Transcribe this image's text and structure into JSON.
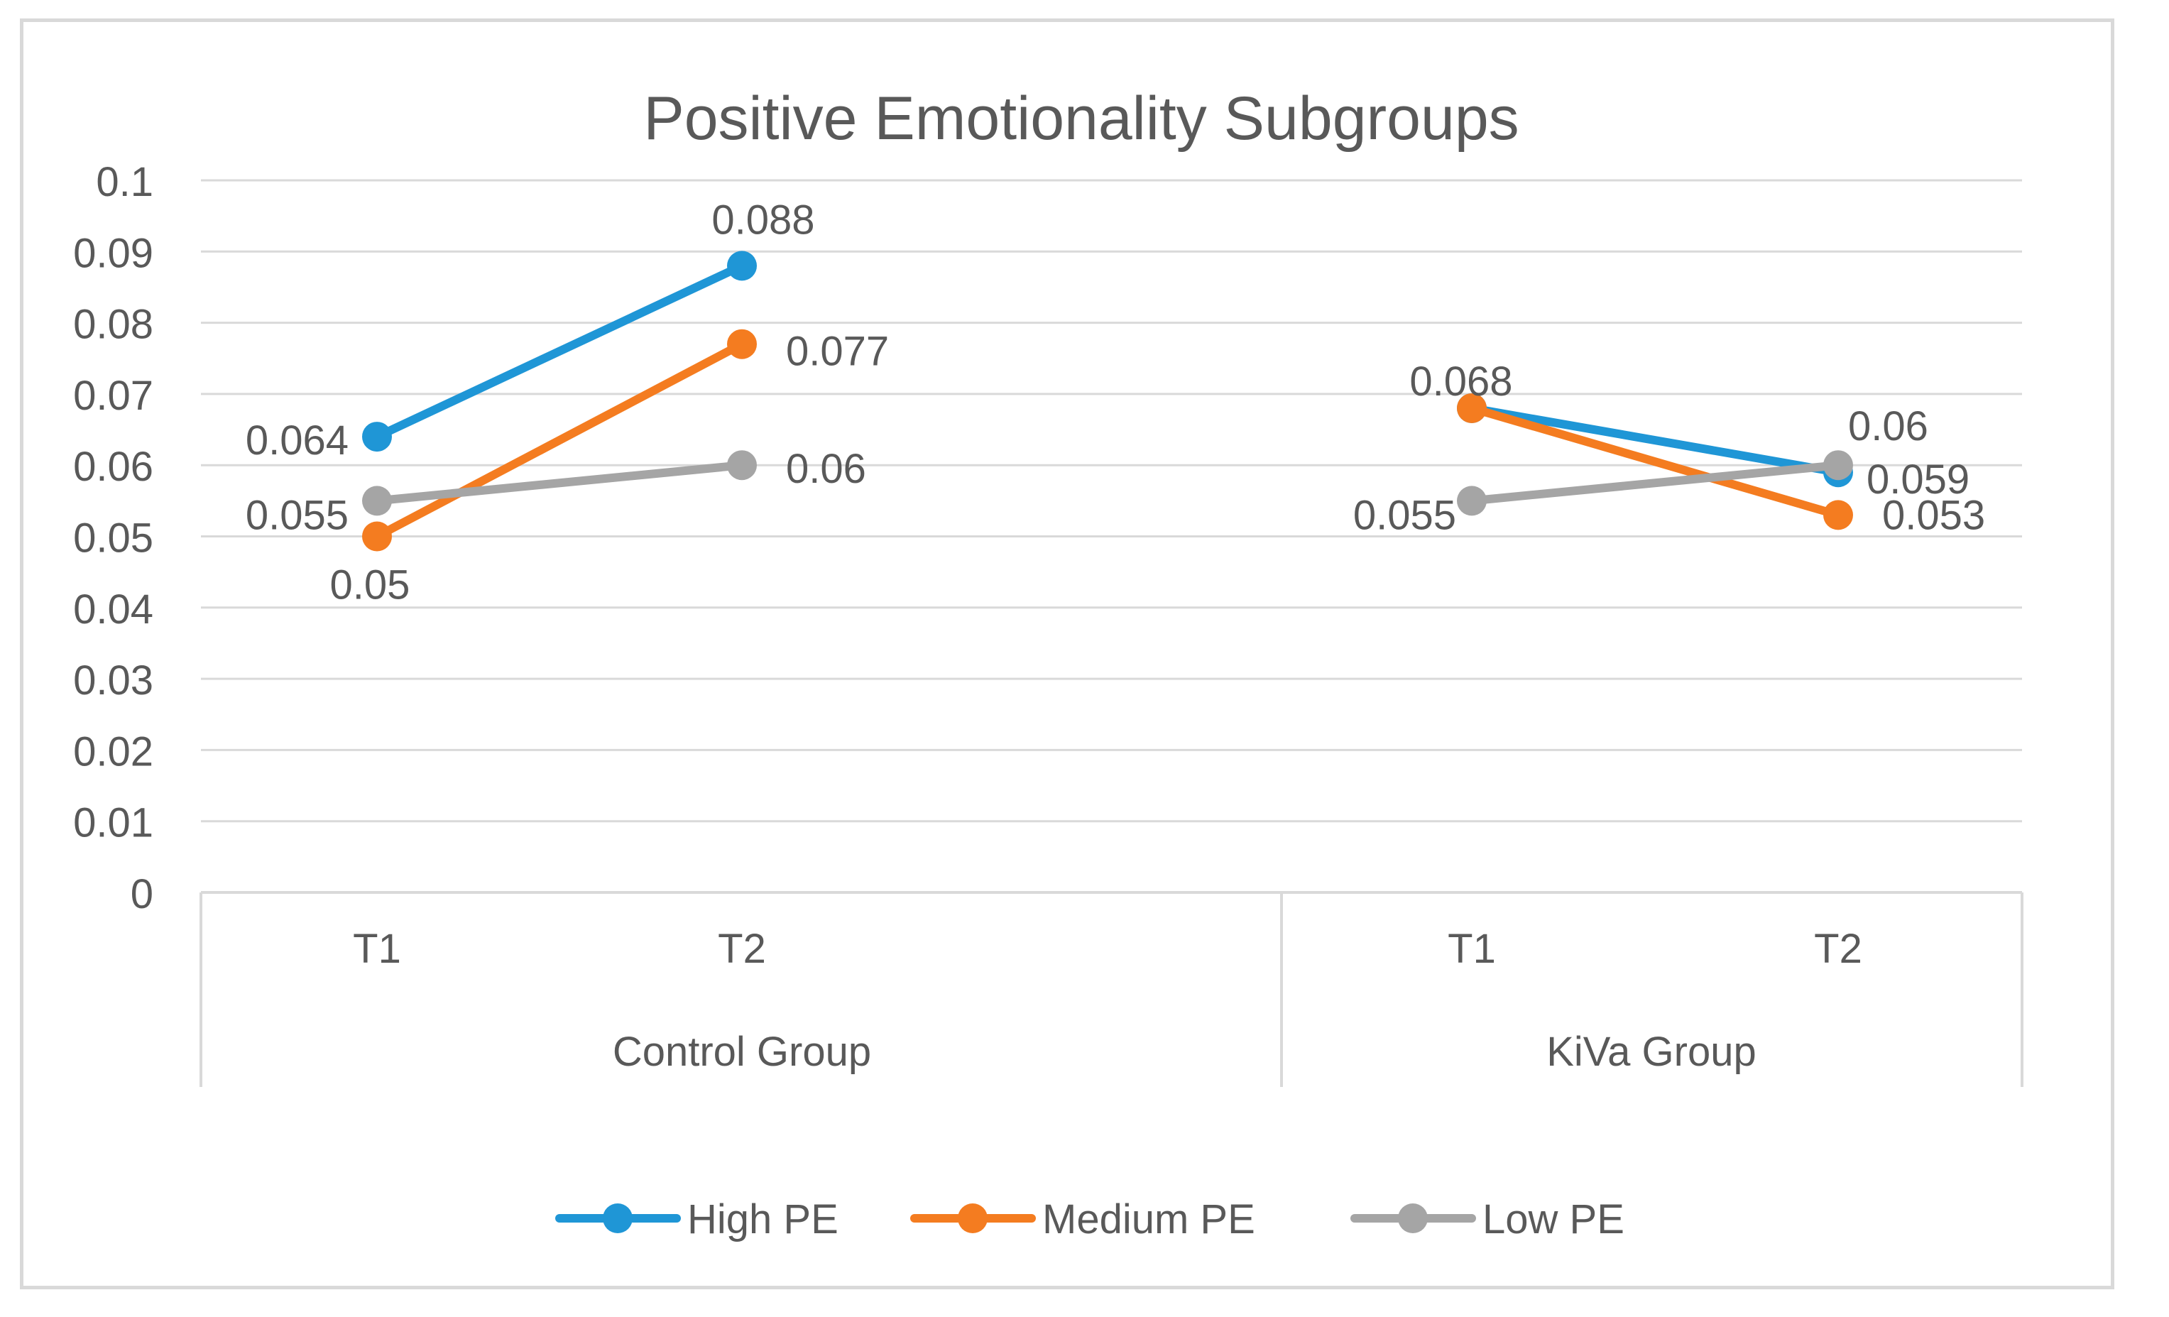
{
  "chart_data": {
    "type": "line",
    "title": "Positive Emotionality Subgroups",
    "xlabel": "",
    "ylabel": "",
    "ylim": [
      0,
      0.1
    ],
    "yticks": [
      "0",
      "0.01",
      "0.02",
      "0.03",
      "0.04",
      "0.05",
      "0.06",
      "0.07",
      "0.08",
      "0.09",
      "0.1"
    ],
    "groups": [
      {
        "name": "Control Group",
        "categories": [
          "T1",
          "T2"
        ]
      },
      {
        "name": "KiVa Group",
        "categories": [
          "T1",
          "T2"
        ]
      }
    ],
    "grid": true,
    "legend_position": "bottom",
    "series": [
      {
        "name": "High PE",
        "color": "#1f96d6",
        "segments": [
          {
            "group": 0,
            "values": [
              0.064,
              0.088
            ],
            "labels": [
              "0.064",
              "0.088"
            ]
          },
          {
            "group": 1,
            "values": [
              0.068,
              0.059
            ],
            "labels": [
              "0.068",
              "0.059"
            ]
          }
        ]
      },
      {
        "name": "Medium PE",
        "color": "#f47c20",
        "segments": [
          {
            "group": 0,
            "values": [
              0.05,
              0.077
            ],
            "labels": [
              "0.05",
              "0.077"
            ]
          },
          {
            "group": 1,
            "values": [
              0.068,
              0.053
            ],
            "labels": [
              "",
              "0.053"
            ]
          }
        ]
      },
      {
        "name": "Low PE",
        "color": "#a5a5a5",
        "segments": [
          {
            "group": 0,
            "values": [
              0.055,
              0.06
            ],
            "labels": [
              "0.055",
              "0.06"
            ]
          },
          {
            "group": 1,
            "values": [
              0.055,
              0.06
            ],
            "labels": [
              "0.055",
              "0.06"
            ]
          }
        ]
      }
    ]
  }
}
